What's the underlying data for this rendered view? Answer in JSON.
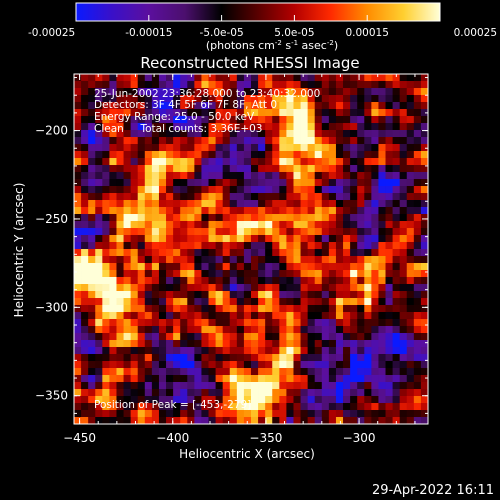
{
  "colorbar": {
    "ticks": [
      "-0.00025",
      "-0.00015",
      "-5.0e-05",
      "5.0e-05",
      "0.00015",
      "0.00025"
    ],
    "units_prefix": "(photons cm",
    "units_exp1": "-2",
    "units_mid": " s",
    "units_exp2": "-1",
    "units_asec": " asec",
    "units_exp3": "-2",
    "units_suffix": ")",
    "colors": [
      "#0a1aff",
      "#3a10c8",
      "#5b0f9e",
      "#4b0f6d",
      "#000000",
      "#5a0000",
      "#b40000",
      "#ff2a00",
      "#ff8c00",
      "#ffcf30",
      "#ffffd8"
    ]
  },
  "chart_data": {
    "type": "heatmap",
    "title": "Reconstructed RHESSI Image",
    "xlabel": "Heliocentric X (arcsec)",
    "ylabel": "Heliocentric Y (arcsec)",
    "xlim": [
      -453,
      -263
    ],
    "ylim": [
      -366,
      -168
    ],
    "x_ticks": [
      -450,
      -400,
      -350,
      -300
    ],
    "x_tick_labels": [
      "−450",
      "−400",
      "−350",
      "−300"
    ],
    "y_ticks": [
      -200,
      -250,
      -300,
      -350
    ],
    "y_tick_labels": [
      "−200",
      "−250",
      "−300",
      "−350"
    ],
    "value_range": [
      -0.00025,
      0.00025
    ],
    "annotations": [
      "25-Jun-2002 23:36:28.000 to 23:40:32.000",
      "Detectors: 3F 4F 5F 6F 7F 8F, Att 0",
      "Energy Range: 25.0 - 50.0 keV",
      "Clean     Total counts: 3.36E+03"
    ],
    "peak_label": "Position of Peak = [-453,-279]",
    "hot_regions": [
      {
        "x": -445,
        "y": -278,
        "strength": 1.0
      },
      {
        "x": -428,
        "y": -300,
        "strength": 0.95
      },
      {
        "x": -412,
        "y": -248,
        "strength": 0.8
      },
      {
        "x": -405,
        "y": -220,
        "strength": 0.6
      },
      {
        "x": -375,
        "y": -255,
        "strength": 0.85
      },
      {
        "x": -370,
        "y": -300,
        "strength": 0.75
      },
      {
        "x": -355,
        "y": -345,
        "strength": 0.9
      },
      {
        "x": -335,
        "y": -195,
        "strength": 0.9
      },
      {
        "x": -328,
        "y": -225,
        "strength": 0.85
      },
      {
        "x": -330,
        "y": -260,
        "strength": 0.7
      },
      {
        "x": -300,
        "y": -282,
        "strength": 0.65
      },
      {
        "x": -345,
        "y": -315,
        "strength": 0.6
      }
    ],
    "cold_regions": [
      {
        "x": -300,
        "y": -340,
        "strength": 0.8
      },
      {
        "x": -280,
        "y": -320,
        "strength": 0.7
      },
      {
        "x": -290,
        "y": -230,
        "strength": 0.6
      },
      {
        "x": -395,
        "y": -330,
        "strength": 0.55
      },
      {
        "x": -365,
        "y": -220,
        "strength": 0.5
      }
    ]
  },
  "timestamp": "29-Apr-2022 16:11"
}
